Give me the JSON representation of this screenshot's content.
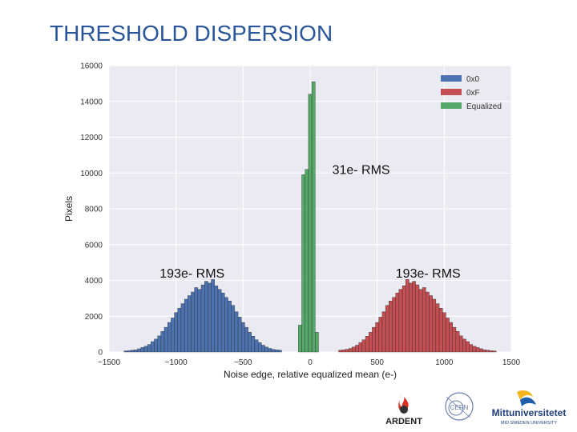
{
  "slide": {
    "title": "THRESHOLD DISPERSION"
  },
  "colors": {
    "blue": "#4c72b0",
    "red": "#c44e52",
    "green": "#55a868",
    "plot_bg": "#eaeaf2",
    "grid": "#ffffff"
  },
  "chart_data": {
    "type": "bar",
    "title": "",
    "xlabel": "Noise edge, relative equalized mean (e-)",
    "ylabel": "Pixels",
    "xlim": [
      -1500,
      1500
    ],
    "ylim": [
      0,
      16000
    ],
    "x_ticks": [
      -1500,
      -1000,
      -500,
      0,
      500,
      1000,
      1500
    ],
    "x_tick_labels": [
      "−1500",
      "−1000",
      "−500",
      "0",
      "500",
      "1000",
      "1500"
    ],
    "y_ticks": [
      0,
      2000,
      4000,
      6000,
      8000,
      10000,
      12000,
      14000,
      16000
    ],
    "grid": true,
    "legend_position": "top-right",
    "bin_width": 25,
    "series": [
      {
        "name": "0x0",
        "color": "#4c72b0",
        "x": [
          -1375,
          -1350,
          -1325,
          -1300,
          -1275,
          -1250,
          -1225,
          -1200,
          -1175,
          -1150,
          -1125,
          -1100,
          -1075,
          -1050,
          -1025,
          -1000,
          -975,
          -950,
          -925,
          -900,
          -875,
          -850,
          -825,
          -800,
          -775,
          -750,
          -725,
          -700,
          -675,
          -650,
          -625,
          -600,
          -575,
          -550,
          -525,
          -500,
          -475,
          -450,
          -425,
          -400,
          -375,
          -350,
          -325,
          -300,
          -275,
          -250,
          -225
        ],
        "values": [
          60,
          70,
          100,
          120,
          180,
          250,
          320,
          420,
          580,
          720,
          900,
          1150,
          1380,
          1650,
          1900,
          2200,
          2450,
          2700,
          2950,
          3150,
          3350,
          3600,
          3500,
          3750,
          3950,
          3850,
          4050,
          3700,
          3500,
          3300,
          3050,
          2850,
          2600,
          2250,
          1950,
          1650,
          1380,
          1100,
          880,
          680,
          520,
          380,
          280,
          200,
          150,
          120,
          100
        ]
      },
      {
        "name": "0xF",
        "color": "#c44e52",
        "x": [
          225,
          250,
          275,
          300,
          325,
          350,
          375,
          400,
          425,
          450,
          475,
          500,
          525,
          550,
          575,
          600,
          625,
          650,
          675,
          700,
          725,
          750,
          775,
          800,
          825,
          850,
          875,
          900,
          925,
          950,
          975,
          1000,
          1025,
          1050,
          1075,
          1100,
          1125,
          1150,
          1175,
          1200,
          1225,
          1250,
          1275,
          1300,
          1325,
          1350,
          1375
        ],
        "values": [
          100,
          120,
          150,
          200,
          280,
          380,
          520,
          680,
          880,
          1100,
          1380,
          1650,
          1950,
          2250,
          2600,
          2850,
          3050,
          3300,
          3500,
          3700,
          4050,
          3850,
          3950,
          3750,
          3500,
          3600,
          3350,
          3150,
          2950,
          2700,
          2450,
          2200,
          1900,
          1650,
          1380,
          1150,
          900,
          720,
          580,
          420,
          320,
          250,
          180,
          120,
          100,
          70,
          60
        ]
      },
      {
        "name": "Equalized",
        "color": "#55a868",
        "x": [
          -75,
          -50,
          -25,
          0,
          25,
          50
        ],
        "values": [
          1500,
          9900,
          10200,
          14400,
          15100,
          1100
        ]
      }
    ],
    "annotations": [
      {
        "text": "31e- RMS"
      },
      {
        "text": "193e- RMS"
      },
      {
        "text": "193e- RMS"
      }
    ]
  },
  "logos": {
    "ardent": "ARDENT",
    "miun_name": "Mittuniversitetet",
    "miun_sub": "MID SWEDEN UNIVERSITY"
  }
}
